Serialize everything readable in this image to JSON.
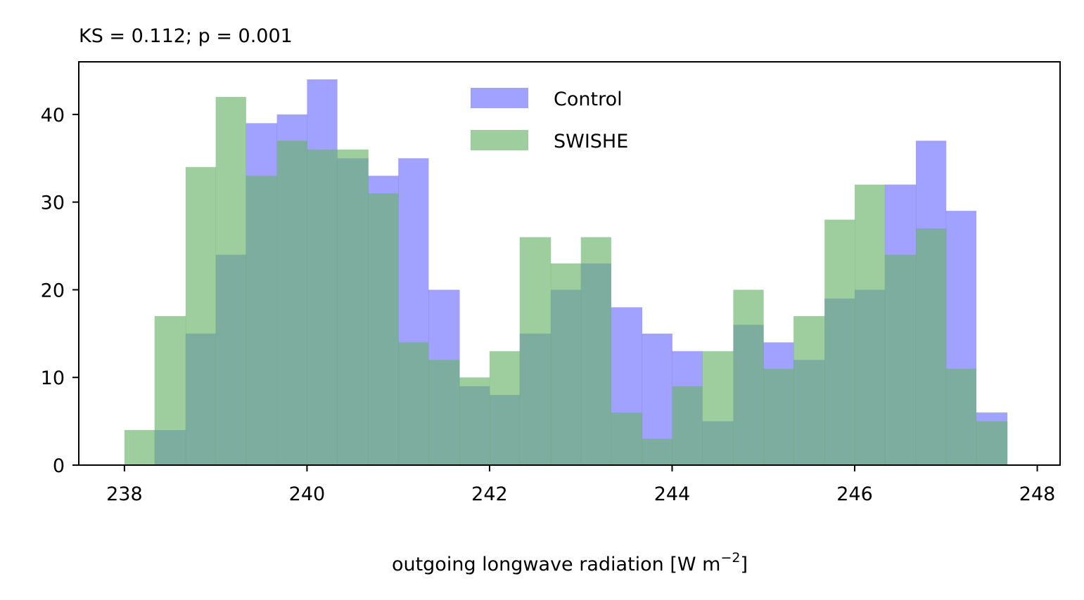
{
  "chart_data": {
    "type": "bar",
    "title": "KS = 0.112; p = 0.001",
    "xlabel": "outgoing longwave radiation [W m",
    "xlabel_sup": "−2",
    "xlabel_end": "]",
    "ylabel": "",
    "xlim": [
      237.5,
      248.25
    ],
    "ylim": [
      0,
      46
    ],
    "grid": false,
    "legend_position": "top-center",
    "x_ticks": [
      238,
      240,
      242,
      244,
      246,
      248
    ],
    "y_ticks": [
      0,
      10,
      20,
      30,
      40
    ],
    "bin_edges": [
      238.0,
      238.33,
      238.67,
      239.0,
      239.33,
      239.67,
      240.0,
      240.33,
      240.67,
      241.0,
      241.33,
      241.67,
      242.0,
      242.33,
      242.67,
      243.0,
      243.33,
      243.67,
      244.0,
      244.33,
      244.67,
      245.0,
      245.33,
      245.67,
      246.0,
      246.33,
      246.67,
      247.0,
      247.33,
      247.67
    ],
    "series": [
      {
        "name": "Control",
        "color": "#6f6fff",
        "opacity": 0.65,
        "values": [
          0,
          4,
          15,
          24,
          39,
          40,
          44,
          35,
          33,
          35,
          20,
          9,
          8,
          15,
          20,
          23,
          18,
          15,
          13,
          5,
          16,
          14,
          12,
          19,
          20,
          32,
          37,
          29,
          6
        ]
      },
      {
        "name": "SWISHE",
        "color": "#6ab46a",
        "opacity": 0.65,
        "values": [
          4,
          17,
          34,
          42,
          33,
          37,
          36,
          36,
          31,
          14,
          12,
          10,
          13,
          26,
          23,
          26,
          6,
          3,
          9,
          13,
          20,
          11,
          17,
          28,
          32,
          24,
          27,
          11,
          5
        ]
      }
    ]
  }
}
